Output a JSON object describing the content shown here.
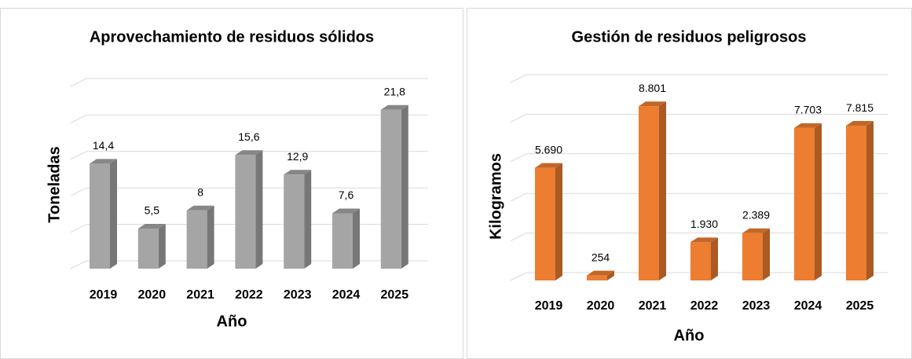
{
  "chart_data": [
    {
      "type": "bar",
      "title": "Aprovechamiento de residuos sólidos",
      "x_label": "Año",
      "y_label": "Toneladas",
      "categories": [
        "2019",
        "2020",
        "2021",
        "2022",
        "2023",
        "2024",
        "2025"
      ],
      "values": [
        14.4,
        5.5,
        8,
        15.6,
        12.9,
        7.6,
        21.8
      ],
      "value_labels": [
        "14,4",
        "5,5",
        "8",
        "15,6",
        "12,9",
        "7,6",
        "21,8"
      ],
      "color": "#a5a5a5",
      "ylim": [
        0,
        25
      ],
      "yticks": [
        0,
        5,
        10,
        15,
        20,
        25
      ],
      "grid": true
    },
    {
      "type": "bar",
      "title": "Gestión de residuos peligrosos",
      "x_label": "Año",
      "y_label": "Kilogramos",
      "categories": [
        "2019",
        "2020",
        "2021",
        "2022",
        "2023",
        "2024",
        "2025"
      ],
      "values": [
        5690,
        254,
        8801,
        1930,
        2389,
        7703,
        7815
      ],
      "value_labels": [
        "5.690",
        "254",
        "8.801",
        "1.930",
        "2.389",
        "7.703",
        "7.815"
      ],
      "color": "#ed7d31",
      "ylim": [
        0,
        10000
      ],
      "yticks": [
        0,
        2000,
        4000,
        6000,
        8000,
        10000
      ],
      "grid": true
    }
  ]
}
